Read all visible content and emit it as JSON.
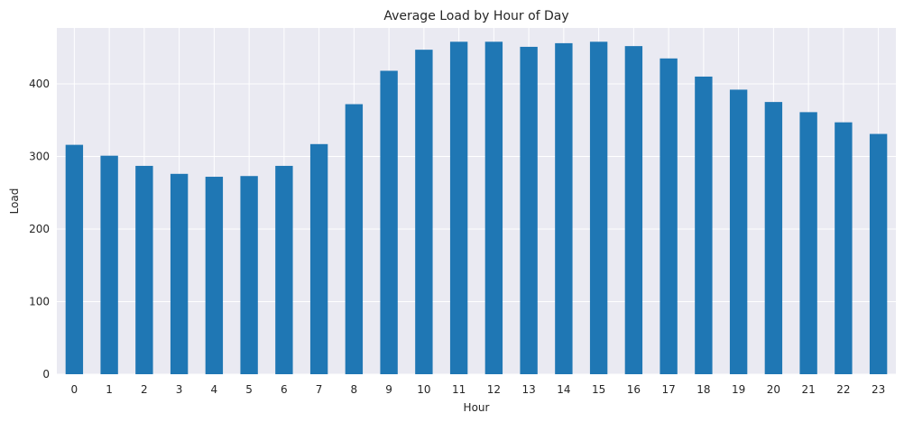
{
  "chart_data": {
    "type": "bar",
    "title": "Average Load by Hour of Day",
    "xlabel": "Hour",
    "ylabel": "Load",
    "categories": [
      "0",
      "1",
      "2",
      "3",
      "4",
      "5",
      "6",
      "7",
      "8",
      "9",
      "10",
      "11",
      "12",
      "13",
      "14",
      "15",
      "16",
      "17",
      "18",
      "19",
      "20",
      "21",
      "22",
      "23"
    ],
    "values": [
      316,
      301,
      287,
      276,
      272,
      273,
      287,
      317,
      372,
      418,
      447,
      458,
      458,
      451,
      456,
      458,
      452,
      435,
      410,
      392,
      375,
      361,
      347,
      331
    ],
    "ylim": [
      0,
      477
    ],
    "yticks": [
      0,
      100,
      200,
      300,
      400
    ],
    "grid": true,
    "legend": "none",
    "colors": {
      "bar": "#1f77b4",
      "plot_background": "#eaeaf2",
      "grid": "#ffffff"
    }
  }
}
